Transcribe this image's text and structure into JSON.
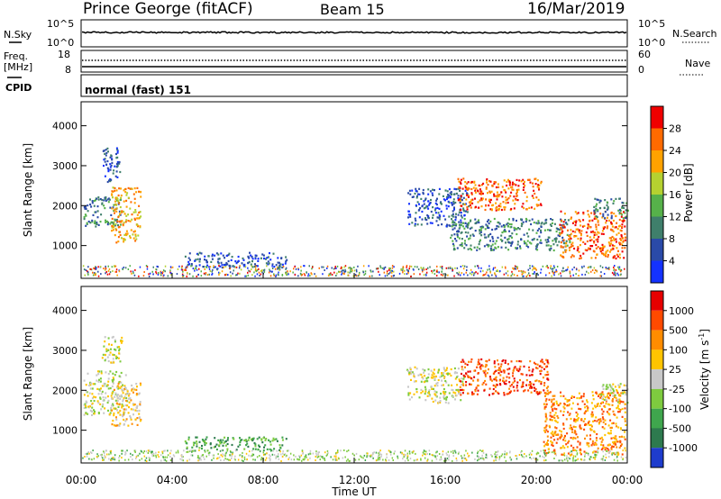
{
  "header": {
    "station": "Prince George (fitACF)",
    "beam": "Beam 15",
    "date": "16/Mar/2019"
  },
  "status_panels": {
    "nsky": {
      "label": "N.Sky",
      "tick_top": "10^5",
      "tick_bottom": "10^0"
    },
    "nsearch": {
      "label": "N.Search",
      "tick_top": "10^5",
      "tick_bottom": "10^0"
    },
    "freq": {
      "label_line1": "Freq.",
      "label_line2": "[MHz]",
      "tick_top": "18",
      "tick_bottom": "8"
    },
    "nave": {
      "label": "Nave",
      "tick_top": "60",
      "tick_bottom": "0"
    },
    "cpid": {
      "label": "CPID",
      "value": "normal (fast) 151"
    }
  },
  "time_axis": {
    "label": "Time UT",
    "ticks": [
      "00:00",
      "04:00",
      "08:00",
      "12:00",
      "16:00",
      "20:00",
      "00:00"
    ]
  },
  "range_axis": {
    "label": "Slant Range [km]",
    "ticks": [
      "1000",
      "2000",
      "3000",
      "4000"
    ]
  },
  "chart_data": [
    {
      "type": "heatmap",
      "panel": "power",
      "xlabel": "Time UT",
      "ylabel": "Slant Range [km]",
      "colorbar_label": "Power [dB]",
      "colorbar_ticks": [
        "4",
        "8",
        "12",
        "16",
        "20",
        "24",
        "28"
      ],
      "xlim": [
        0,
        24
      ],
      "ylim": [
        180,
        4600
      ],
      "colors": [
        "#1432ff",
        "#2a4aa8",
        "#3f7f6b",
        "#56b14a",
        "#b5d130",
        "#ffa200",
        "#ff6a00",
        "#f00000"
      ],
      "regions": [
        {
          "t0": 0.1,
          "t1": 1.7,
          "r0": 1500,
          "r1": 2250,
          "level": 2
        },
        {
          "t0": 1.3,
          "t1": 2.6,
          "r0": 1100,
          "r1": 2500,
          "level": 5
        },
        {
          "t0": 0.9,
          "t1": 1.7,
          "r0": 2600,
          "r1": 3500,
          "level": 1
        },
        {
          "t0": 4.5,
          "t1": 9.0,
          "r0": 450,
          "r1": 850,
          "level": 1
        },
        {
          "t0": 14.3,
          "t1": 17.0,
          "r0": 1500,
          "r1": 2450,
          "level": 1
        },
        {
          "t0": 16.5,
          "t1": 20.2,
          "r0": 1900,
          "r1": 2700,
          "level": 6
        },
        {
          "t0": 16.2,
          "t1": 21.5,
          "r0": 900,
          "r1": 1700,
          "level": 2
        },
        {
          "t0": 21.0,
          "t1": 23.9,
          "r0": 700,
          "r1": 1900,
          "level": 6
        },
        {
          "t0": 22.5,
          "t1": 24.0,
          "r0": 1700,
          "r1": 2200,
          "level": 2
        }
      ]
    },
    {
      "type": "heatmap",
      "panel": "velocity",
      "xlabel": "Time UT",
      "ylabel": "Slant Range [km]",
      "colorbar_label": "Velocity [m s^-1]",
      "colorbar_ticks": [
        "1000",
        "500",
        "100",
        "25",
        "-25",
        "-100",
        "-500",
        "-1000"
      ],
      "xlim": [
        0,
        24
      ],
      "ylim": [
        180,
        4600
      ],
      "colors": [
        "#1e3ccd",
        "#2d7a4e",
        "#3fa64d",
        "#7ecb3f",
        "#c8c8c8",
        "#ffc400",
        "#ff8c00",
        "#ff4a00",
        "#e60000"
      ],
      "regions": [
        {
          "t0": 0.1,
          "t1": 2.0,
          "r0": 1400,
          "r1": 2500,
          "level": 4
        },
        {
          "t0": 1.3,
          "t1": 2.6,
          "r0": 1100,
          "r1": 2200,
          "level": 5
        },
        {
          "t0": 0.9,
          "t1": 1.8,
          "r0": 2700,
          "r1": 3400,
          "level": 4
        },
        {
          "t0": 4.5,
          "t1": 9.0,
          "r0": 500,
          "r1": 850,
          "level": 2
        },
        {
          "t0": 14.3,
          "t1": 16.8,
          "r0": 1700,
          "r1": 2600,
          "level": 4
        },
        {
          "t0": 16.6,
          "t1": 20.5,
          "r0": 1900,
          "r1": 2800,
          "level": 7
        },
        {
          "t0": 20.3,
          "t1": 23.9,
          "r0": 400,
          "r1": 2000,
          "level": 6
        },
        {
          "t0": 22.8,
          "t1": 24.0,
          "r0": 1700,
          "r1": 2200,
          "level": 4
        }
      ]
    }
  ]
}
